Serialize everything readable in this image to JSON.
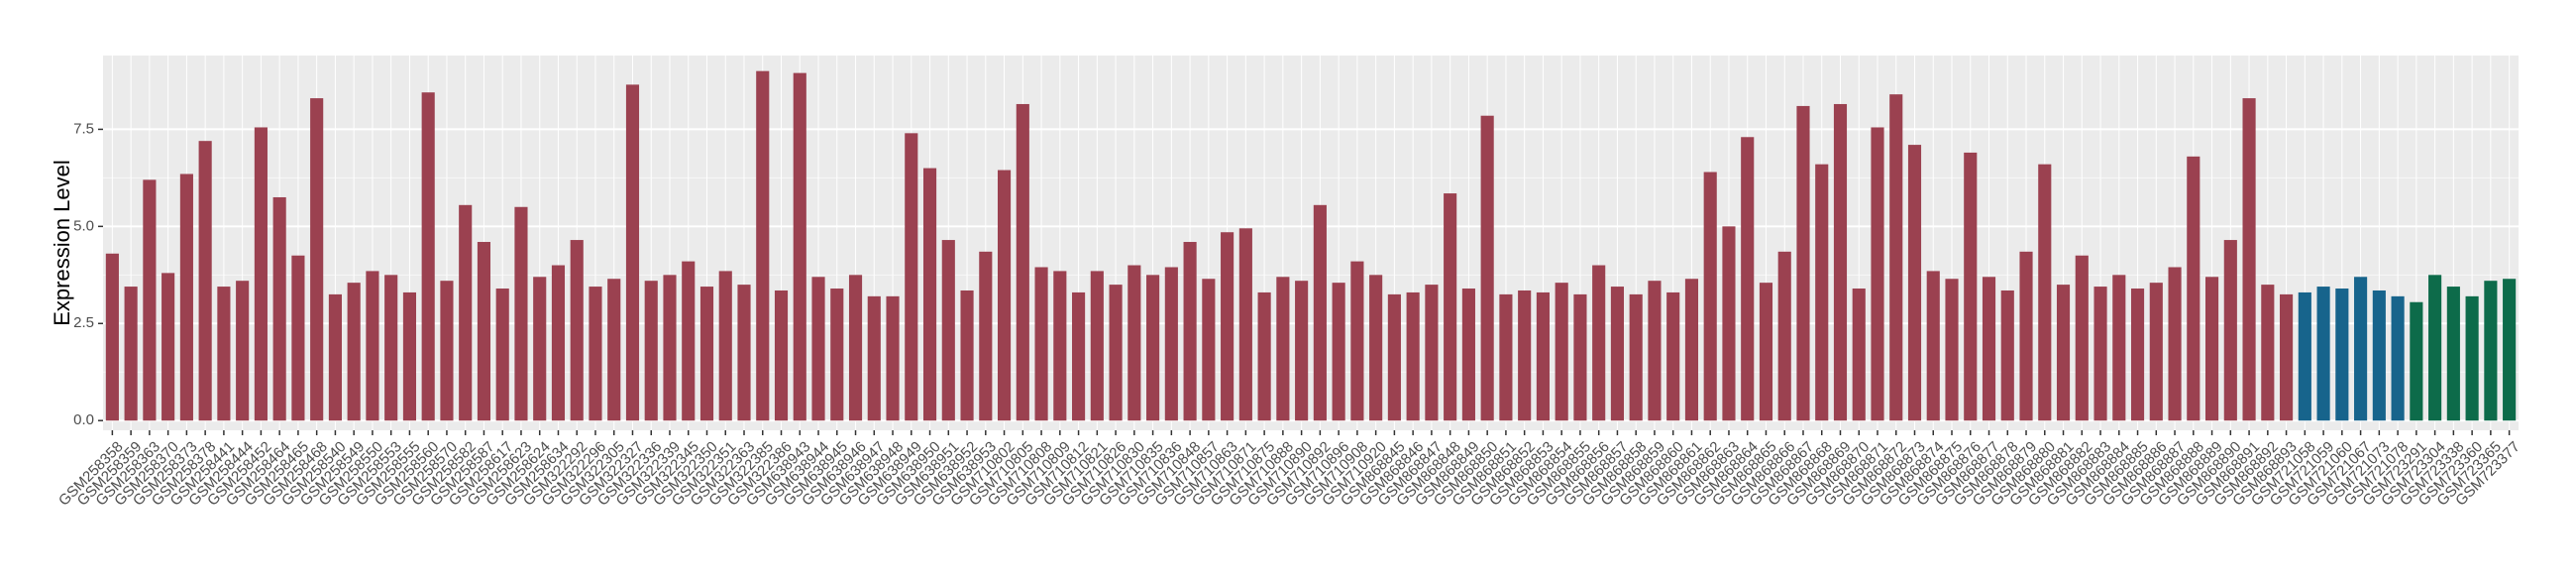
{
  "chart_data": {
    "type": "bar",
    "y_label": "Expression Level",
    "ylim": [
      -0.25,
      9.4
    ],
    "yticks": [
      {
        "value": 0,
        "label": "0.0"
      },
      {
        "value": 2.5,
        "label": "2.5"
      },
      {
        "value": 5,
        "label": "5.0"
      },
      {
        "value": 7.5,
        "label": "7.5"
      }
    ],
    "grid": true,
    "series": [
      {
        "color": "#9b4150",
        "categories": [
          "GSM258358",
          "GSM258359",
          "GSM258363",
          "GSM258370",
          "GSM258373",
          "GSM258378",
          "GSM258441",
          "GSM258444",
          "GSM258452",
          "GSM258464",
          "GSM258465",
          "GSM258468",
          "GSM258540",
          "GSM258549",
          "GSM258550",
          "GSM258553",
          "GSM258555",
          "GSM258560",
          "GSM258570",
          "GSM258582",
          "GSM258587",
          "GSM258617",
          "GSM258623",
          "GSM258624",
          "GSM258634",
          "GSM322292",
          "GSM322296",
          "GSM322305",
          "GSM322327",
          "GSM322336",
          "GSM322339",
          "GSM322345",
          "GSM322350",
          "GSM322351",
          "GSM322363",
          "GSM322385",
          "GSM322386",
          "GSM638943",
          "GSM638944",
          "GSM638945",
          "GSM638946",
          "GSM638947",
          "GSM638948",
          "GSM638949",
          "GSM638950",
          "GSM638951",
          "GSM638952",
          "GSM638953",
          "GSM710802",
          "GSM710805",
          "GSM710808",
          "GSM710809",
          "GSM710812",
          "GSM710821",
          "GSM710826",
          "GSM710830",
          "GSM710835",
          "GSM710836",
          "GSM710848",
          "GSM710857",
          "GSM710863",
          "GSM710871",
          "GSM710875",
          "GSM710888",
          "GSM710890",
          "GSM710892",
          "GSM710896",
          "GSM710908",
          "GSM710920",
          "GSM868845",
          "GSM868846",
          "GSM868847",
          "GSM868848",
          "GSM868849",
          "GSM868850",
          "GSM868851",
          "GSM868852",
          "GSM868853",
          "GSM868854",
          "GSM868855",
          "GSM868856",
          "GSM868857",
          "GSM868858",
          "GSM868859",
          "GSM868860",
          "GSM868861",
          "GSM868862",
          "GSM868863",
          "GSM868864",
          "GSM868865",
          "GSM868866",
          "GSM868867",
          "GSM868868",
          "GSM868869",
          "GSM868870",
          "GSM868871",
          "GSM868872",
          "GSM868873",
          "GSM868874",
          "GSM868875",
          "GSM868876",
          "GSM868877",
          "GSM868878",
          "GSM868879",
          "GSM868880",
          "GSM868881",
          "GSM868882",
          "GSM868883",
          "GSM868884",
          "GSM868885",
          "GSM868886",
          "GSM868887",
          "GSM868888",
          "GSM868889",
          "GSM868890",
          "GSM868891",
          "GSM868892",
          "GSM868893"
        ],
        "values": [
          4.3,
          3.45,
          6.2,
          3.8,
          6.35,
          7.2,
          3.45,
          3.6,
          7.55,
          5.75,
          4.25,
          8.3,
          3.25,
          3.55,
          3.85,
          3.75,
          3.3,
          8.45,
          3.6,
          5.55,
          4.6,
          3.4,
          5.5,
          3.7,
          4.0,
          4.65,
          3.45,
          3.65,
          8.65,
          3.6,
          3.75,
          4.1,
          3.45,
          3.85,
          3.5,
          9.0,
          3.35,
          8.95,
          3.7,
          3.4,
          3.75,
          3.2,
          3.2,
          7.4,
          6.5,
          4.65,
          3.35,
          4.35,
          6.45,
          8.15,
          3.95,
          3.85,
          3.3,
          3.85,
          3.5,
          4.0,
          3.75,
          3.95,
          4.6,
          3.65,
          4.85,
          4.95,
          3.3,
          3.7,
          3.6,
          5.55,
          3.55,
          4.1,
          3.75,
          3.25,
          3.3,
          3.5,
          5.85,
          3.4,
          7.85,
          3.25,
          3.35,
          3.3,
          3.55,
          3.25,
          4.0,
          3.45,
          3.25,
          3.6,
          3.3,
          3.65,
          6.4,
          5.0,
          7.3,
          3.55,
          4.35,
          8.1,
          6.6,
          8.15,
          3.4,
          7.55,
          8.4,
          7.1,
          3.85,
          3.65,
          6.9,
          3.7,
          3.35,
          4.35,
          6.6,
          3.5,
          4.25,
          3.45,
          3.75,
          3.4,
          3.55,
          3.95,
          6.8,
          3.7,
          4.65,
          8.3,
          3.5,
          3.25
        ]
      },
      {
        "color": "#17648c",
        "categories": [
          "GSM721058",
          "GSM721059",
          "GSM721060",
          "GSM721067",
          "GSM721073",
          "GSM721078"
        ],
        "values": [
          3.3,
          3.45,
          3.4,
          3.7,
          3.35,
          3.2
        ]
      },
      {
        "color": "#0d6b4a",
        "categories": [
          "GSM723291",
          "GSM723304",
          "GSM723338",
          "GSM723360",
          "GSM723365",
          "GSM723377"
        ],
        "values": [
          3.05,
          3.75,
          3.45,
          3.2,
          3.6,
          3.65
        ]
      }
    ]
  }
}
